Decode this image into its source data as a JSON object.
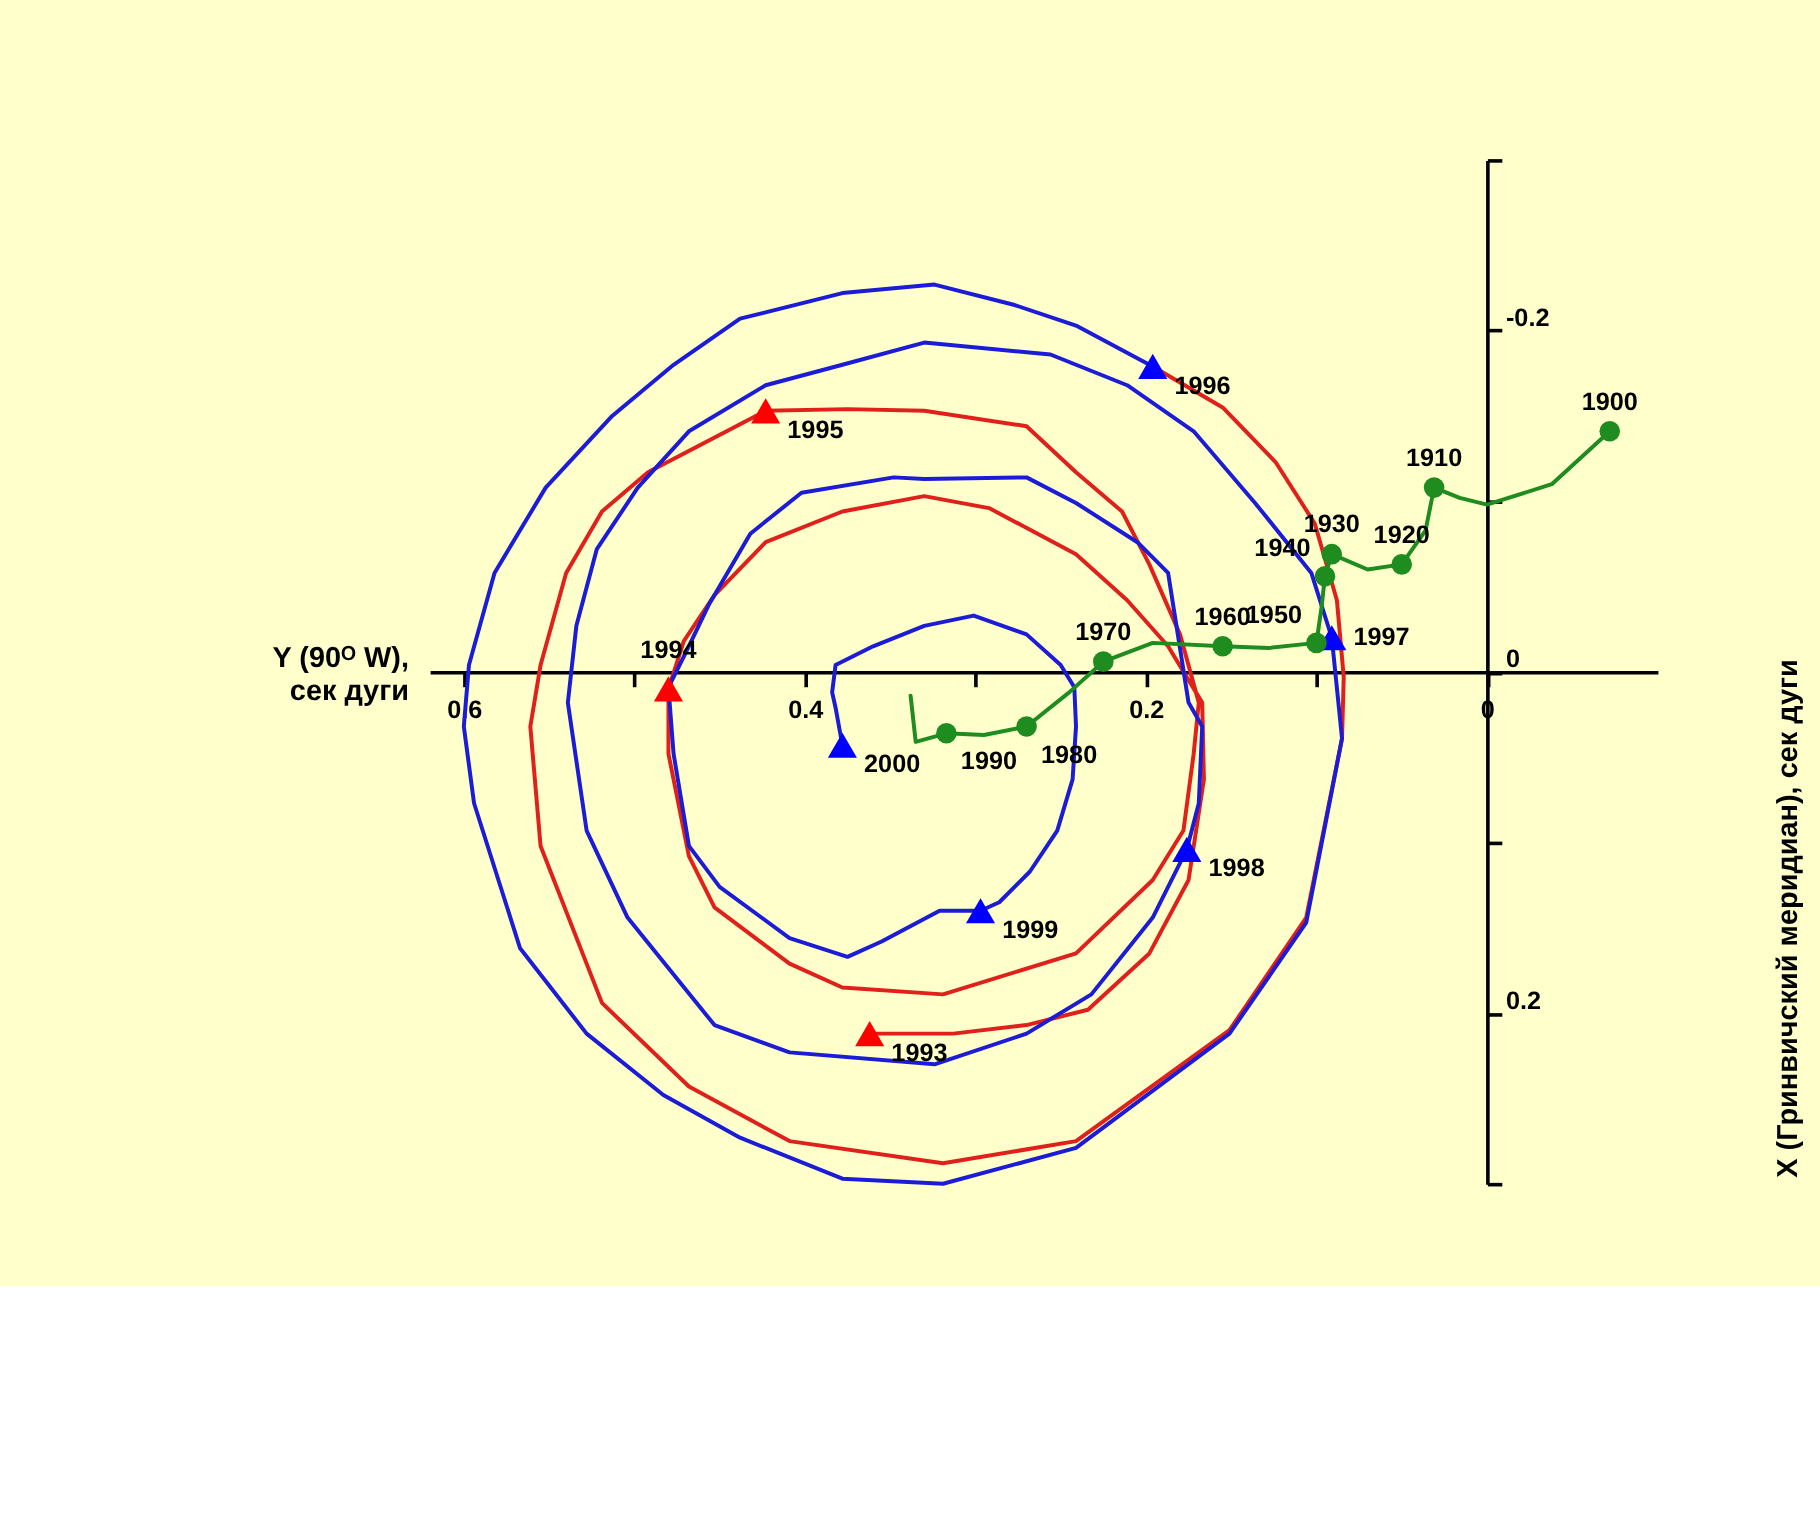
{
  "chart_data": {
    "type": "line",
    "xlabel": "Y (90ᴼ W),\nсек дуги",
    "ylabel": "X (Гринвичский меридиан), сек дуги",
    "xlim": [
      0.62,
      -0.1
    ],
    "ylim": [
      0.3,
      -0.3
    ],
    "xticks": [
      0.6,
      {
        "value": 0.5,
        "label": null
      },
      0.4,
      {
        "value": 0.3,
        "label": null
      },
      0.2,
      {
        "value": 0.1,
        "label": null
      },
      0
    ],
    "yticks": [
      {
        "value": -0.3,
        "label": null
      },
      -0.2,
      {
        "value": -0.1,
        "label": null
      },
      0,
      {
        "value": 0.1,
        "label": null
      },
      0.2,
      {
        "value": 0.3,
        "label": null
      }
    ],
    "series": [
      {
        "type": "line",
        "color": "#e0201b",
        "x": [
          0.362,
          0.313,
          0.27,
          0.234,
          0.198,
          0.175,
          0.166,
          0.167,
          0.187,
          0.211,
          0.241,
          0.292,
          0.33,
          0.378,
          0.423,
          0.453,
          0.471,
          0.48,
          0.48,
          0.468,
          0.453,
          0.409,
          0.378,
          0.319,
          0.241,
          0.196,
          0.178,
          0.172,
          0.169,
          0.18,
          0.198,
          0.214,
          0.241,
          0.27,
          0.33,
          0.375,
          0.423,
          0.492,
          0.519,
          0.54,
          0.555,
          0.561,
          0.555,
          0.519,
          0.468,
          0.409,
          0.319,
          0.241,
          0.151,
          0.106,
          0.085,
          0.084,
          0.088,
          0.101,
          0.124,
          0.155,
          0.196
        ],
        "values": [
          0.212,
          0.212,
          0.207,
          0.198,
          0.165,
          0.122,
          0.063,
          0.018,
          -0.015,
          -0.042,
          -0.069,
          -0.096,
          -0.103,
          -0.094,
          -0.076,
          -0.045,
          -0.018,
          0.01,
          0.048,
          0.108,
          0.138,
          0.171,
          0.185,
          0.189,
          0.165,
          0.122,
          0.093,
          0.048,
          0.018,
          -0.022,
          -0.063,
          -0.094,
          -0.117,
          -0.144,
          -0.153,
          -0.154,
          -0.153,
          -0.117,
          -0.094,
          -0.058,
          -0.004,
          0.032,
          0.102,
          0.194,
          0.243,
          0.275,
          0.288,
          0.275,
          0.21,
          0.144,
          0.039,
          0.003,
          -0.042,
          -0.087,
          -0.123,
          -0.155,
          -0.179
        ]
      },
      {
        "type": "line",
        "color": "#1c1cd6",
        "x": [
          0.196,
          0.241,
          0.277,
          0.324,
          0.378,
          0.438,
          0.477,
          0.513,
          0.552,
          0.582,
          0.597,
          0.6,
          0.594,
          0.567,
          0.528,
          0.483,
          0.438,
          0.378,
          0.319,
          0.241,
          0.151,
          0.106,
          0.085,
          0.091,
          0.103,
          0.136,
          0.172,
          0.211,
          0.256,
          0.33,
          0.378,
          0.423,
          0.468,
          0.498,
          0.522,
          0.534,
          0.539,
          0.528,
          0.504,
          0.453,
          0.409,
          0.324,
          0.27,
          0.232,
          0.196,
          0.176,
          0.169,
          0.167,
          0.175,
          0.187,
          0.205,
          0.241,
          0.27,
          0.33,
          0.348,
          0.402,
          0.432,
          0.456,
          0.471,
          0.48,
          0.477,
          0.468,
          0.45,
          0.409,
          0.375,
          0.355,
          0.321,
          0.297,
          0.286,
          0.268,
          0.252,
          0.243,
          0.241,
          0.242,
          0.25,
          0.27,
          0.301,
          0.33,
          0.36,
          0.382,
          0.384,
          0.382,
          0.378
        ],
        "values": [
          -0.179,
          -0.203,
          -0.215,
          -0.227,
          -0.222,
          -0.207,
          -0.18,
          -0.15,
          -0.108,
          -0.058,
          -0.004,
          0.032,
          0.077,
          0.162,
          0.212,
          0.248,
          0.273,
          0.297,
          0.3,
          0.279,
          0.212,
          0.147,
          0.039,
          -0.02,
          -0.058,
          -0.099,
          -0.141,
          -0.168,
          -0.186,
          -0.193,
          -0.18,
          -0.168,
          -0.141,
          -0.108,
          -0.072,
          -0.027,
          0.018,
          0.093,
          0.144,
          0.207,
          0.223,
          0.23,
          0.212,
          0.189,
          0.144,
          0.104,
          0.077,
          0.032,
          0.018,
          -0.058,
          -0.076,
          -0.099,
          -0.114,
          -0.113,
          -0.114,
          -0.105,
          -0.081,
          -0.04,
          -0.009,
          0.009,
          0.048,
          0.102,
          0.126,
          0.156,
          0.167,
          0.158,
          0.14,
          0.14,
          0.135,
          0.117,
          0.093,
          0.063,
          0.032,
          0.009,
          -0.004,
          -0.022,
          -0.033,
          -0.027,
          -0.015,
          -0.004,
          0.012,
          0.021,
          0.043
        ]
      },
      {
        "type": "line",
        "color": "#1e8c1e",
        "x": [
          -0.072,
          -0.038,
          0,
          0.016,
          0.031,
          0.036,
          0.05,
          0.07,
          0.091,
          0.095,
          0.097,
          0.1,
          0.128,
          0.155,
          0.196,
          0.225,
          0.245,
          0.27,
          0.295,
          0.317,
          0.335,
          0.338
        ],
        "values": [
          -0.141,
          -0.11,
          -0.098,
          -0.102,
          -0.108,
          -0.083,
          -0.063,
          -0.06,
          -0.069,
          -0.056,
          -0.038,
          -0.017,
          -0.014,
          -0.015,
          -0.017,
          -0.006,
          0.012,
          0.032,
          0.037,
          0.036,
          0.041,
          0.014
        ]
      },
      {
        "type": "scatter",
        "marker": "triangle",
        "color": "#ff0000",
        "x": [
          0.362,
          0.48,
          0.423
        ],
        "values": [
          0.212,
          0.01,
          -0.153
        ]
      },
      {
        "type": "scatter",
        "marker": "triangle",
        "color": "#0000ff",
        "x": [
          0.196,
          0.091,
          0.176,
          0.297,
          0.378
        ],
        "values": [
          -0.179,
          -0.02,
          0.104,
          0.14,
          0.043
        ]
      },
      {
        "type": "scatter",
        "marker": "circle",
        "color": "#1e8c1e",
        "x": [
          -0.072,
          0.031,
          0.05,
          0.091,
          0.095,
          0.1,
          0.155,
          0.225,
          0.27,
          0.317
        ],
        "values": [
          -0.141,
          -0.108,
          -0.063,
          -0.069,
          -0.056,
          -0.017,
          -0.015,
          -0.006,
          0.032,
          0.036
        ]
      }
    ],
    "annotations": [
      {
        "text": "1993",
        "x": 0.362,
        "y": 0.212
      },
      {
        "text": "1994",
        "x": 0.48,
        "y": 0.01
      },
      {
        "text": "1995",
        "x": 0.423,
        "y": -0.153
      },
      {
        "text": "1996",
        "x": 0.196,
        "y": -0.179
      },
      {
        "text": "1997",
        "x": 0.091,
        "y": -0.02
      },
      {
        "text": "1998",
        "x": 0.176,
        "y": 0.104
      },
      {
        "text": "1999",
        "x": 0.297,
        "y": 0.14
      },
      {
        "text": "2000",
        "x": 0.378,
        "y": 0.043
      },
      {
        "text": "1900",
        "x": -0.072,
        "y": -0.141
      },
      {
        "text": "1910",
        "x": 0.031,
        "y": -0.108
      },
      {
        "text": "1920",
        "x": 0.05,
        "y": -0.063
      },
      {
        "text": "1930",
        "x": 0.091,
        "y": -0.069
      },
      {
        "text": "1940",
        "x": 0.095,
        "y": -0.056
      },
      {
        "text": "1950",
        "x": 0.1,
        "y": -0.017
      },
      {
        "text": "1960",
        "x": 0.155,
        "y": -0.015
      },
      {
        "text": "1970",
        "x": 0.225,
        "y": -0.006
      },
      {
        "text": "1980",
        "x": 0.27,
        "y": 0.032
      },
      {
        "text": "1990",
        "x": 0.317,
        "y": 0.036
      }
    ]
  }
}
